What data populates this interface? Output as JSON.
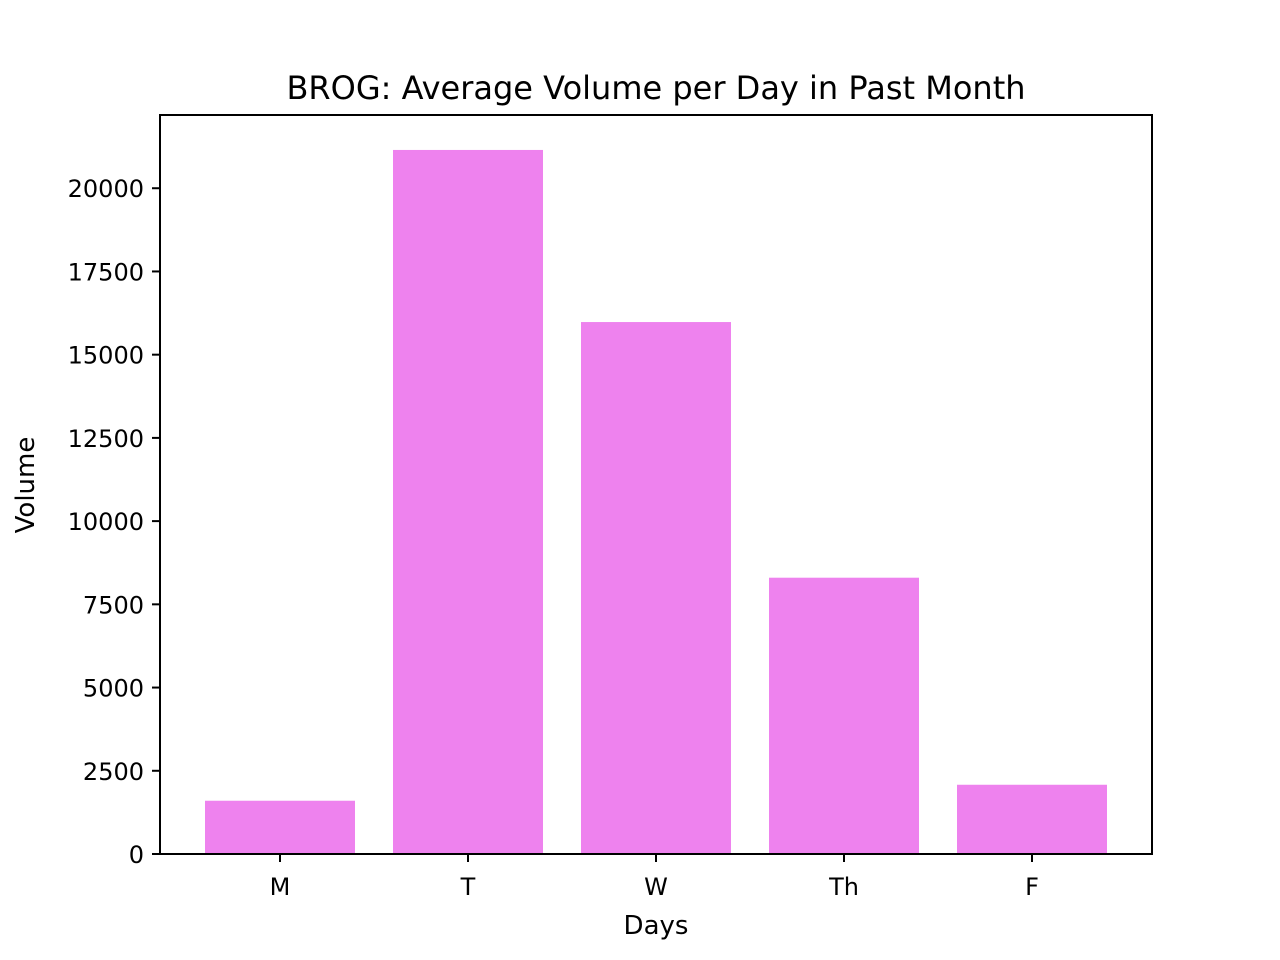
{
  "chart_data": {
    "type": "bar",
    "title": "BROG: Average Volume per Day in Past Month",
    "xlabel": "Days",
    "ylabel": "Volume",
    "categories": [
      "M",
      "T",
      "W",
      "Th",
      "F"
    ],
    "values": [
      1600,
      21150,
      15980,
      8300,
      2080
    ],
    "ylim": [
      0,
      22200
    ],
    "yticks": [
      0,
      2500,
      5000,
      7500,
      10000,
      12500,
      15000,
      17500,
      20000
    ],
    "grid": false,
    "legend": "none",
    "bar_color": "#EE82EE"
  }
}
